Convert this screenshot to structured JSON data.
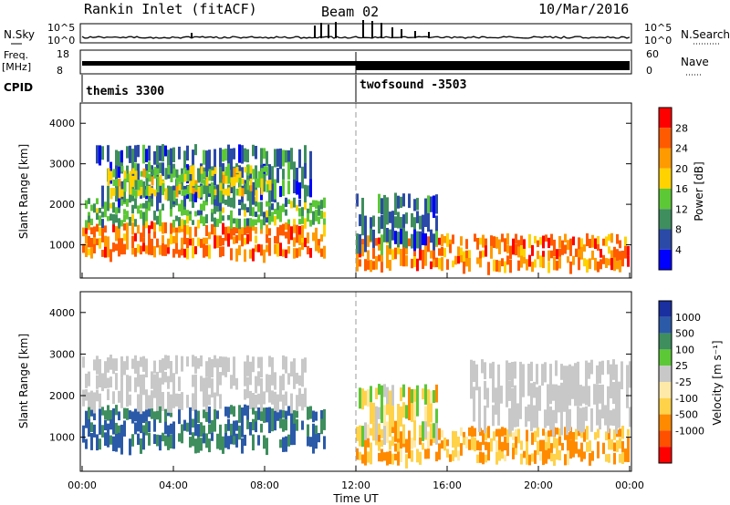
{
  "header": {
    "title": "Rankin Inlet (fitACF)",
    "beam": "Beam 02",
    "date": "10/Mar/2016"
  },
  "noise_panel": {
    "left_label": "N.Sky",
    "right_label": "N.Search",
    "left_ticks": [
      "10^5",
      "10^0"
    ],
    "right_ticks": [
      "10^5",
      "10^0"
    ]
  },
  "freq_panel": {
    "left_label": "Freq.",
    "left_unit": "[MHz]",
    "right_label": "Nave",
    "left_ticks": [
      "18",
      "8"
    ],
    "right_ticks": [
      "60",
      "0"
    ]
  },
  "cpid": {
    "label": "CPID",
    "modes": [
      {
        "name": "themis 3300",
        "start_hour": 0
      },
      {
        "name": "twofsound -3503",
        "start_hour": 12
      }
    ]
  },
  "colors": {
    "power": [
      "#0000ff",
      "#2b4aa8",
      "#3e8e5e",
      "#5cc836",
      "#ffd200",
      "#ff9a00",
      "#ff5a00",
      "#ff0000"
    ],
    "velocity_neg": [
      "#ff0000",
      "#ff5000",
      "#ff8a00",
      "#ffd24a",
      "#ffe9a8"
    ],
    "velocity_pos": [
      "#c8c8c8",
      "#5cc836",
      "#3e8e5e",
      "#2b5aa8",
      "#1a2fa0"
    ],
    "ground_scatter": "#c8c8c8",
    "axis": "#000000"
  },
  "chart_data": [
    {
      "type": "heatmap",
      "name": "power",
      "ylabel": "Slant Range [km]",
      "ylim": [
        180,
        4500
      ],
      "yticks": [
        "1000",
        "2000",
        "3000",
        "4000"
      ],
      "xlim": [
        0,
        24
      ],
      "colorbar_label": "Power [dB]",
      "colorbar_ticks": [
        "4",
        "8",
        "12",
        "16",
        "20",
        "24",
        "28"
      ],
      "bands": [
        {
          "x": [
            0,
            10.6
          ],
          "y": [
            700,
            1500
          ],
          "value": 24
        },
        {
          "x": [
            0,
            10.6
          ],
          "y": [
            1500,
            2100
          ],
          "value": 12
        },
        {
          "x": [
            0.6,
            10.0
          ],
          "y": [
            2100,
            3400
          ],
          "value": 8
        },
        {
          "x": [
            1.1,
            8.2
          ],
          "y": [
            2200,
            2900
          ],
          "value": 16
        },
        {
          "x": [
            12.0,
            24.0
          ],
          "y": [
            400,
            1200
          ],
          "value": 24
        },
        {
          "x": [
            12.0,
            15.5
          ],
          "y": [
            900,
            2200
          ],
          "value": 8
        }
      ]
    },
    {
      "type": "heatmap",
      "name": "velocity",
      "ylabel": "Slant Range [km]",
      "ylim": [
        180,
        4500
      ],
      "yticks": [
        "1000",
        "2000",
        "3000",
        "4000"
      ],
      "xlim": [
        0,
        24
      ],
      "xticks": [
        "00:00",
        "04:00",
        "08:00",
        "12:00",
        "16:00",
        "20:00",
        "00:00"
      ],
      "xlabel": "Time UT",
      "colorbar_label": "Velocity [m s⁻¹]",
      "colorbar_ticks": [
        "1000",
        "500",
        "100",
        "25",
        "-25",
        "-100",
        "-500",
        "-1000"
      ],
      "bands": [
        {
          "x": [
            0,
            10.6
          ],
          "y": [
            700,
            1700
          ],
          "value": 500
        },
        {
          "x": [
            0,
            9.8
          ],
          "y": [
            1700,
            2900
          ],
          "value": 0
        },
        {
          "x": [
            12.0,
            24.0
          ],
          "y": [
            400,
            1200
          ],
          "value": -100
        },
        {
          "x": [
            17.0,
            24.0
          ],
          "y": [
            1200,
            2800
          ],
          "value": 0
        },
        {
          "x": [
            12.0,
            15.5
          ],
          "y": [
            900,
            2200
          ],
          "value": -25
        }
      ]
    }
  ]
}
